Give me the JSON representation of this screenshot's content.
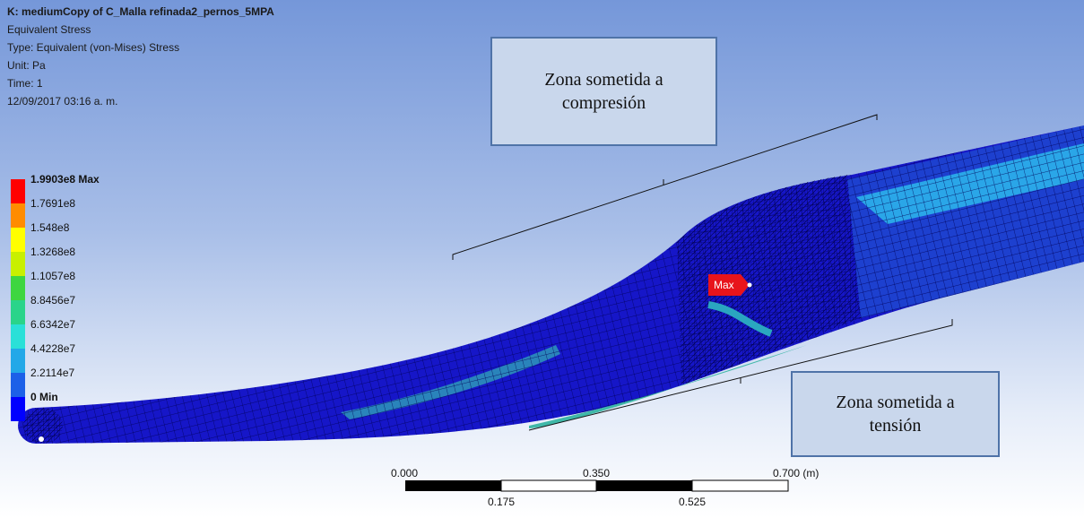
{
  "header": {
    "title": "K: mediumCopy of C_Malla refinada2_pernos_5MPA",
    "lines": [
      "Equivalent Stress",
      "Type: Equivalent (von-Mises) Stress",
      "Unit: Pa",
      "Time: 1",
      "12/09/2017 03:16 a. m."
    ]
  },
  "legend": {
    "labels": [
      "1.9903e8 Max",
      "1.7691e8",
      "1.548e8",
      "1.3268e8",
      "1.1057e8",
      "8.8456e7",
      "6.6342e7",
      "4.4228e7",
      "2.2114e7",
      "0 Min"
    ]
  },
  "annotations": [
    {
      "lines": [
        "Zona sometida a",
        "compresión"
      ]
    },
    {
      "lines": [
        "Zona sometida a",
        "tensión"
      ]
    }
  ],
  "max_marker": "Max",
  "scale_bar": {
    "top_labels": [
      "0.000",
      "0.350",
      "0.700 (m)"
    ],
    "bottom_labels": [
      "0.175",
      "0.525"
    ]
  }
}
